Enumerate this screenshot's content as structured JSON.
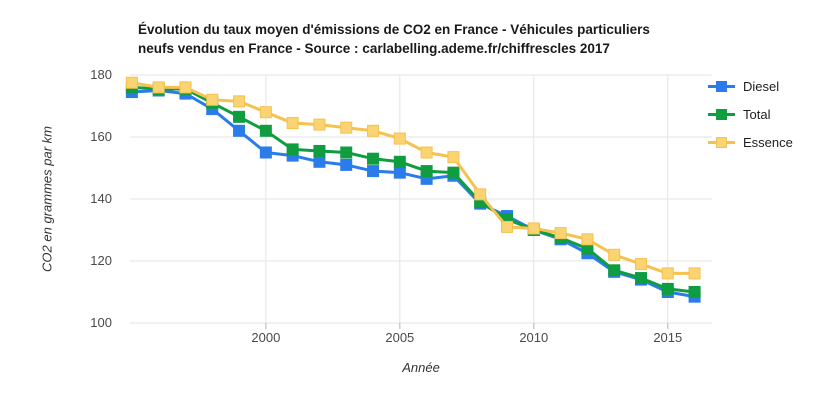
{
  "title": {
    "lines": [
      "Évolution du taux moyen d'émissions de CO2 en France - Véhicules particuliers",
      "neufs vendus en France - Source : carlabelling.ademe.fr/chiffrescles 2017"
    ]
  },
  "colors": {
    "gridline": "#e3e3e3",
    "tick": "#b3b3b3",
    "axis_label": "#4a4a4a",
    "diesel": "#2b7ceb",
    "total": "#0f9d40",
    "essence": "#f5c14f"
  },
  "chart_data": {
    "type": "line",
    "title": "Évolution du taux moyen d'émissions de CO2 en France - Véhicules particuliers neufs vendus en France - Source : carlabelling.ademe.fr/chiffrescles 2017",
    "xlabel": "Année",
    "ylabel": "CO2 en grammes par km",
    "x": [
      1995,
      1996,
      1997,
      1998,
      1999,
      2000,
      2001,
      2002,
      2003,
      2004,
      2005,
      2006,
      2007,
      2008,
      2009,
      2010,
      2011,
      2012,
      2013,
      2014,
      2015,
      2016
    ],
    "series": [
      {
        "name": "Diesel",
        "color": "#2b7ceb",
        "marker_fill": "#2b7ceb",
        "values": [
          174.5,
          175,
          174,
          169,
          162,
          155,
          154,
          152,
          151,
          149,
          148.5,
          146.5,
          147.5,
          138.5,
          134.5,
          130,
          127,
          122.5,
          116.5,
          114,
          110,
          108.5
        ]
      },
      {
        "name": "Total",
        "color": "#0f9d40",
        "marker_fill": "#0f9d40",
        "values": [
          176,
          175.5,
          175.5,
          171,
          166.5,
          162,
          156,
          155.5,
          155,
          153,
          152,
          149,
          148.5,
          139,
          133.5,
          130,
          127.5,
          124,
          117,
          114.5,
          111,
          110
        ]
      },
      {
        "name": "Essence",
        "color": "#f5c14f",
        "marker_fill": "#fad472",
        "values": [
          177.5,
          176,
          176,
          172,
          171.5,
          168,
          164.5,
          164,
          163,
          162,
          159.5,
          155,
          153.5,
          141.5,
          131,
          130.5,
          129,
          127,
          122,
          119,
          116,
          116
        ]
      }
    ],
    "xticks": [
      2000,
      2005,
      2010,
      2015
    ],
    "yticks": [
      100,
      120,
      140,
      160,
      180
    ],
    "xlim": [
      1994.93,
      2016.65
    ],
    "ylim": [
      100,
      180
    ],
    "grid": true,
    "legend_position": "right",
    "marker": "square"
  }
}
